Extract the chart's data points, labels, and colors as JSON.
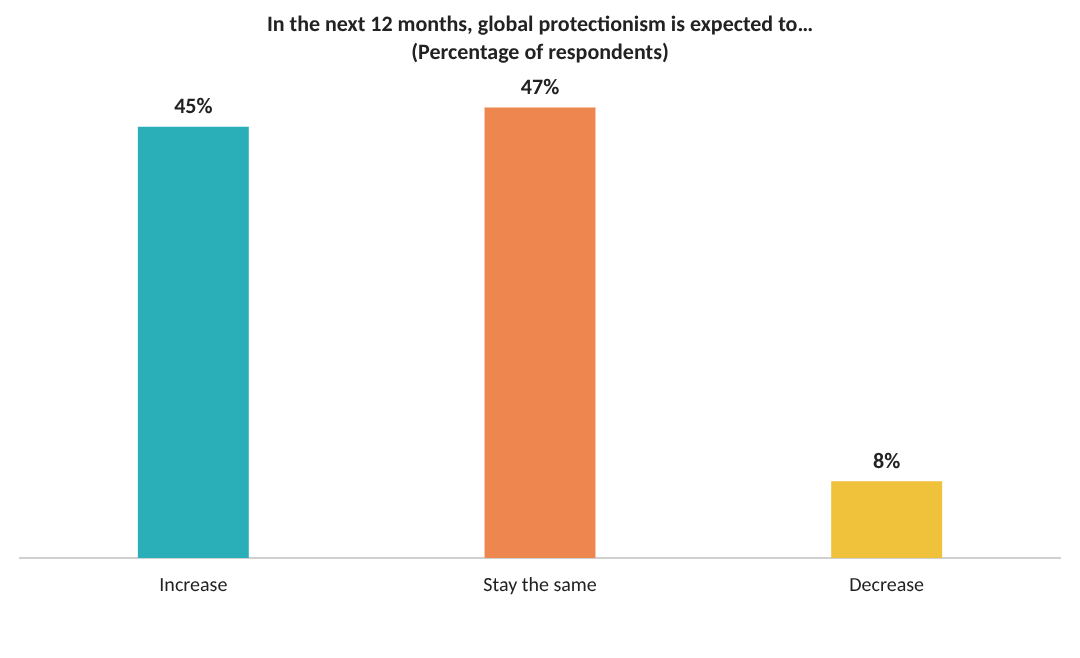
{
  "chart_data": {
    "type": "bar",
    "title": "In the next 12 months, global protectionism is expected to…",
    "subtitle": "(Percentage of respondents)",
    "categories": [
      "Increase",
      "Stay the same",
      "Decrease"
    ],
    "values": [
      45,
      47,
      8
    ],
    "colors": [
      "#2aaeb8",
      "#ee874f",
      "#f0c13a"
    ],
    "value_labels": [
      "45%",
      "47%",
      "8%"
    ],
    "legend": false,
    "grid": false
  }
}
